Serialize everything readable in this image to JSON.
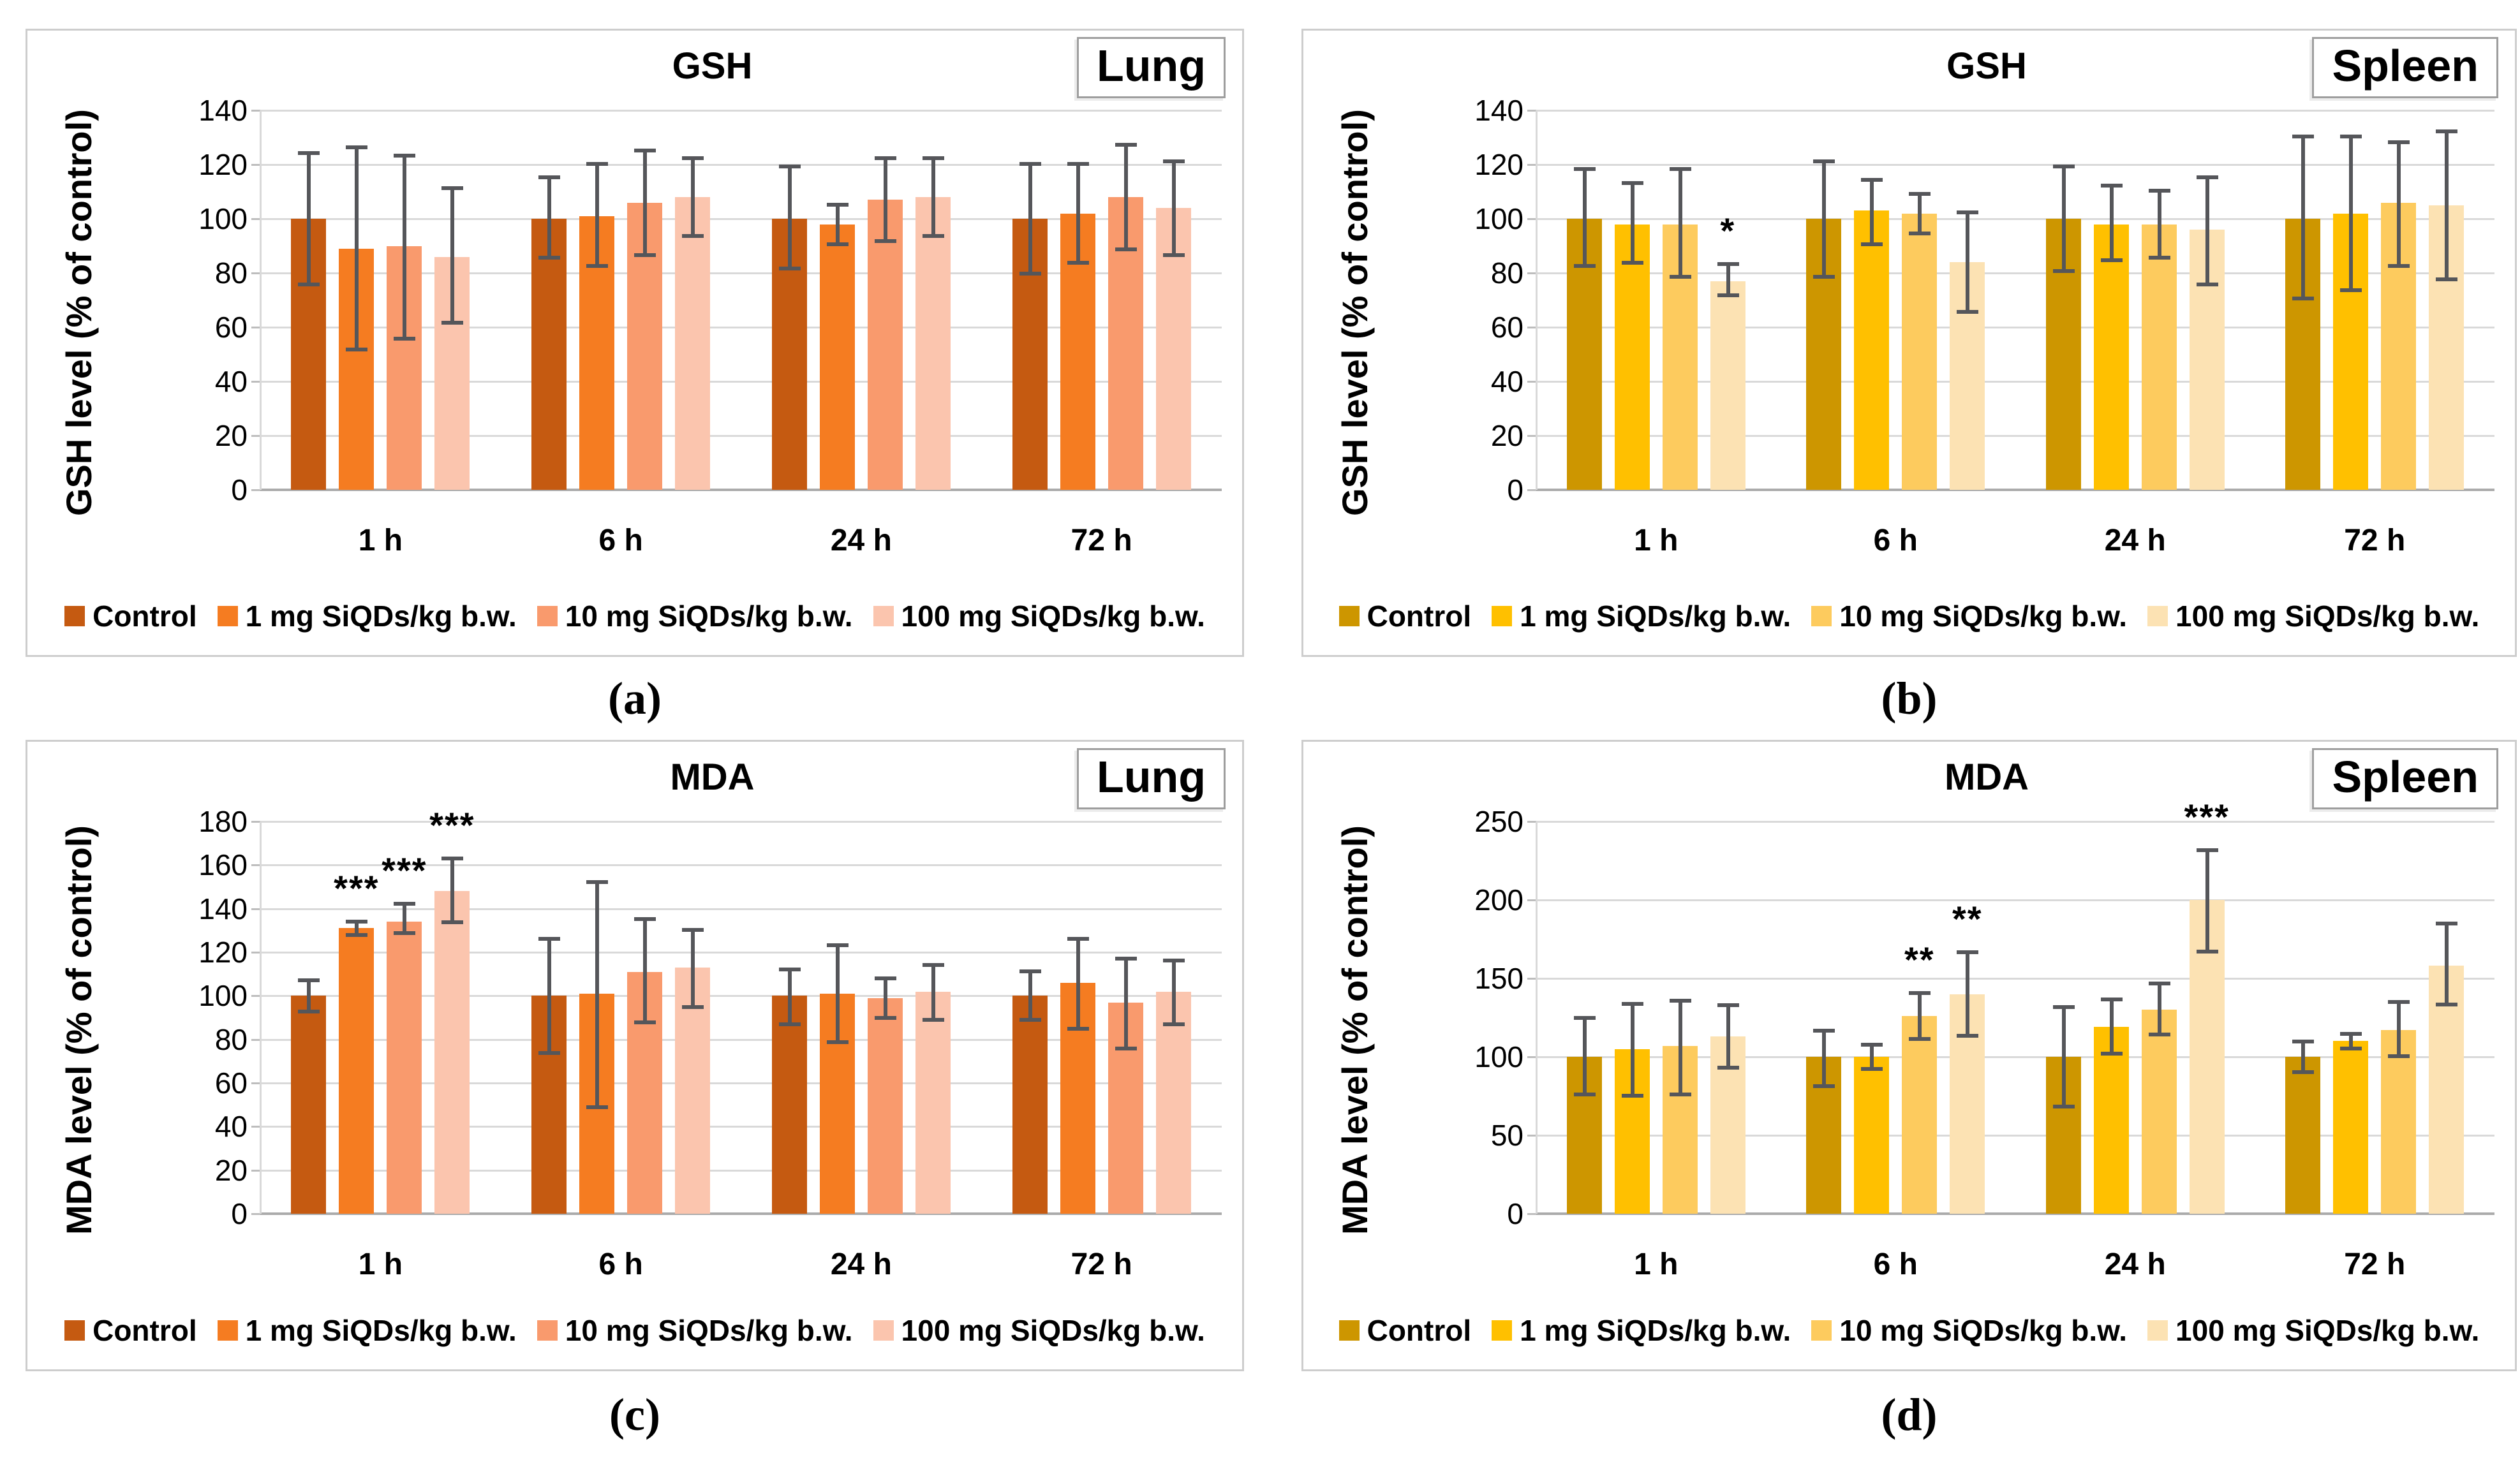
{
  "chart_data": [
    {
      "id": "a",
      "type": "bar",
      "title": "GSH",
      "organ_badge": "Lung",
      "sublabel": "(a)",
      "ylabel": "GSH level (% of control)",
      "xlabel": "",
      "ylim": [
        0,
        140
      ],
      "ytick_step": 20,
      "grid": true,
      "legend_position": "bottom",
      "categories": [
        "1 h",
        "6 h",
        "24 h",
        "72 h"
      ],
      "series": [
        {
          "name": "Control",
          "color": "#C55A11",
          "values": [
            100,
            100,
            100,
            100
          ],
          "err_low": [
            75,
            85,
            81,
            79
          ],
          "err_high": [
            125,
            116,
            120,
            121
          ]
        },
        {
          "name": "1 mg SiQDs/kg b.w.",
          "color": "#F57C21",
          "values": [
            89,
            101,
            98,
            102
          ],
          "err_low": [
            51,
            82,
            90,
            83
          ],
          "err_high": [
            127,
            121,
            106,
            121
          ]
        },
        {
          "name": "10 mg SiQDs/kg b.w.",
          "color": "#F99A6D",
          "values": [
            90,
            106,
            107,
            108
          ],
          "err_low": [
            55,
            86,
            91,
            88
          ],
          "err_high": [
            124,
            126,
            123,
            128
          ]
        },
        {
          "name": "100 mg SiQDs/kg b.w.",
          "color": "#FBC5AE",
          "values": [
            86,
            108,
            108,
            104
          ],
          "err_low": [
            61,
            93,
            93,
            86
          ],
          "err_high": [
            112,
            123,
            123,
            122
          ]
        }
      ],
      "significance": []
    },
    {
      "id": "b",
      "type": "bar",
      "title": "GSH",
      "organ_badge": "Spleen",
      "sublabel": "(b)",
      "ylabel": "GSH level (% of control)",
      "xlabel": "",
      "ylim": [
        0,
        140
      ],
      "ytick_step": 20,
      "grid": true,
      "legend_position": "bottom",
      "categories": [
        "1 h",
        "6 h",
        "24 h",
        "72 h"
      ],
      "series": [
        {
          "name": "Control",
          "color": "#CD9600",
          "values": [
            100,
            100,
            100,
            100
          ],
          "err_low": [
            82,
            78,
            80,
            70
          ],
          "err_high": [
            119,
            122,
            120,
            131
          ]
        },
        {
          "name": "1 mg SiQDs/kg b.w.",
          "color": "#FFC000",
          "values": [
            98,
            103,
            98,
            102
          ],
          "err_low": [
            83,
            90,
            84,
            73
          ],
          "err_high": [
            114,
            115,
            113,
            131
          ]
        },
        {
          "name": "10 mg SiQDs/kg b.w.",
          "color": "#FDCB5E",
          "values": [
            98,
            102,
            98,
            106
          ],
          "err_low": [
            78,
            94,
            85,
            82
          ],
          "err_high": [
            119,
            110,
            111,
            129
          ]
        },
        {
          "name": "100 mg SiQDs/kg b.w.",
          "color": "#FCE2B3",
          "values": [
            77,
            84,
            96,
            105
          ],
          "err_low": [
            71,
            65,
            75,
            77
          ],
          "err_high": [
            84,
            103,
            116,
            133
          ]
        }
      ],
      "significance": [
        {
          "category": 0,
          "series": 3,
          "label": "*"
        }
      ]
    },
    {
      "id": "c",
      "type": "bar",
      "title": "MDA",
      "organ_badge": "Lung",
      "sublabel": "(c)",
      "ylabel": "MDA level (% of control)",
      "xlabel": "",
      "ylim": [
        0,
        180
      ],
      "ytick_step": 20,
      "grid": true,
      "legend_position": "bottom",
      "categories": [
        "1 h",
        "6 h",
        "24 h",
        "72 h"
      ],
      "series": [
        {
          "name": "Control",
          "color": "#C55A11",
          "values": [
            100,
            100,
            100,
            100
          ],
          "err_low": [
            92,
            73,
            86,
            88
          ],
          "err_high": [
            108,
            127,
            113,
            112
          ]
        },
        {
          "name": "1 mg SiQDs/kg b.w.",
          "color": "#F57C21",
          "values": [
            131,
            101,
            101,
            106
          ],
          "err_low": [
            127,
            48,
            78,
            84
          ],
          "err_high": [
            135,
            153,
            124,
            127
          ]
        },
        {
          "name": "10 mg SiQDs/kg b.w.",
          "color": "#F99A6D",
          "values": [
            134,
            111,
            99,
            97
          ],
          "err_low": [
            128,
            87,
            89,
            75
          ],
          "err_high": [
            143,
            136,
            109,
            118
          ]
        },
        {
          "name": "100 mg SiQDs/kg b.w.",
          "color": "#FBC5AE",
          "values": [
            148,
            113,
            102,
            102
          ],
          "err_low": [
            133,
            94,
            88,
            86
          ],
          "err_high": [
            164,
            131,
            115,
            117
          ]
        }
      ],
      "significance": [
        {
          "category": 0,
          "series": 1,
          "label": "***"
        },
        {
          "category": 0,
          "series": 2,
          "label": "***"
        },
        {
          "category": 0,
          "series": 3,
          "label": "***"
        }
      ]
    },
    {
      "id": "d",
      "type": "bar",
      "title": "MDA",
      "organ_badge": "Spleen",
      "sublabel": "(d)",
      "ylabel": "MDA level (% of control)",
      "xlabel": "",
      "ylim": [
        0,
        250
      ],
      "ytick_step": 50,
      "grid": true,
      "legend_position": "bottom",
      "categories": [
        "1 h",
        "6 h",
        "24 h",
        "72 h"
      ],
      "series": [
        {
          "name": "Control",
          "color": "#CD9600",
          "values": [
            100,
            100,
            100,
            100
          ],
          "err_low": [
            75,
            80,
            67,
            89
          ],
          "err_high": [
            126,
            118,
            133,
            111
          ]
        },
        {
          "name": "1 mg SiQDs/kg b.w.",
          "color": "#FFC000",
          "values": [
            105,
            100,
            119,
            110
          ],
          "err_low": [
            74,
            91,
            101,
            104
          ],
          "err_high": [
            135,
            109,
            138,
            116
          ]
        },
        {
          "name": "10 mg SiQDs/kg b.w.",
          "color": "#FDCB5E",
          "values": [
            107,
            126,
            130,
            117
          ],
          "err_low": [
            75,
            110,
            113,
            99
          ],
          "err_high": [
            137,
            142,
            148,
            136
          ]
        },
        {
          "name": "100 mg SiQDs/kg b.w.",
          "color": "#FCE2B3",
          "values": [
            113,
            140,
            200,
            158
          ],
          "err_low": [
            92,
            112,
            166,
            132
          ],
          "err_high": [
            134,
            168,
            233,
            186
          ]
        }
      ],
      "significance": [
        {
          "category": 1,
          "series": 2,
          "label": "**"
        },
        {
          "category": 1,
          "series": 3,
          "label": "**"
        },
        {
          "category": 2,
          "series": 3,
          "label": "***"
        }
      ]
    }
  ],
  "styles": {
    "grid_color": "#D9D9D9",
    "baseline_color": "#ABABAB",
    "axis_color": "#D9D9D9",
    "tick_color": "#BDBDBD",
    "error_bar_color": "#55565A",
    "panel_border_color": "#CDCDCD"
  }
}
